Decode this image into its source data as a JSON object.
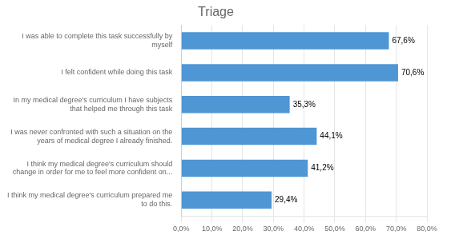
{
  "chart_data": {
    "type": "bar",
    "orientation": "horizontal",
    "title": "Triage",
    "categories": [
      "I think my medical degree's curriculum prepared me\nto do this.",
      "I think my medical degree's curriculum should\nchange in order for me to feel more confident on...",
      "I was never confronted with such a situation on the\nyears of medical degree I already finished.",
      "In my medical degree's curriculum I have subjects\nthat helped me through this task",
      "I felt confident while doing this task",
      "I was able to complete this task successfully by\nmyself"
    ],
    "values": [
      29.4,
      41.2,
      44.1,
      35.3,
      70.6,
      67.6
    ],
    "value_labels": [
      "29,4%",
      "41,2%",
      "44,1%",
      "35,3%",
      "70,6%",
      "67,6%"
    ],
    "data_labels": true,
    "color": "#4f96d4",
    "xlim": [
      0,
      80
    ],
    "xticks": [
      {
        "value": 0,
        "label": "0,0%"
      },
      {
        "value": 10,
        "label": "10,0%"
      },
      {
        "value": 20,
        "label": "20,0%"
      },
      {
        "value": 30,
        "label": "30,0%"
      },
      {
        "value": 40,
        "label": "40,0%"
      },
      {
        "value": 50,
        "label": "50,0%"
      },
      {
        "value": 60,
        "label": "60,0%"
      },
      {
        "value": 70,
        "label": "70,0%"
      },
      {
        "value": 80,
        "label": "80,0%"
      }
    ],
    "grid": true
  }
}
